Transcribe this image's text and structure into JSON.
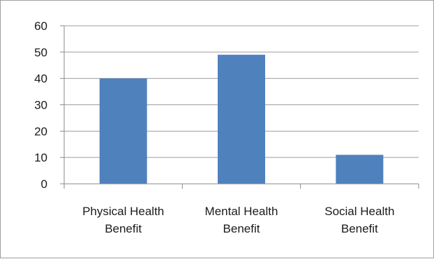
{
  "chart_data": {
    "type": "bar",
    "categories": [
      [
        "Physical Health",
        "Benefit"
      ],
      [
        "Mental Health",
        "Benefit"
      ],
      [
        "Social Health",
        "Benefit"
      ]
    ],
    "category_names": [
      "Physical Health Benefit",
      "Mental Health Benefit",
      "Social Health Benefit"
    ],
    "values": [
      40,
      49,
      11
    ],
    "ylim": [
      0,
      60
    ],
    "yticks": [
      0,
      10,
      20,
      30,
      40,
      50,
      60
    ],
    "grid": true,
    "title": "",
    "xlabel": "",
    "ylabel": "",
    "colors": {
      "bar": "#4f81bd",
      "grid": "#9c9c9c",
      "axis": "#8a8a8a",
      "frame": "#a0a0a0"
    }
  }
}
